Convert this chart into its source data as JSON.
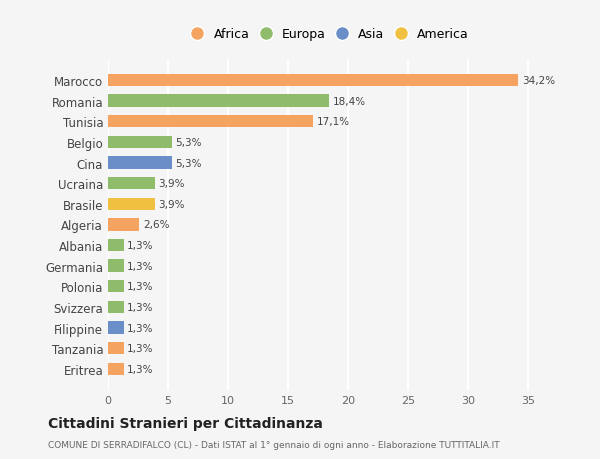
{
  "categories": [
    "Eritrea",
    "Tanzania",
    "Filippine",
    "Svizzera",
    "Polonia",
    "Germania",
    "Albania",
    "Algeria",
    "Brasile",
    "Ucraina",
    "Cina",
    "Belgio",
    "Tunisia",
    "Romania",
    "Marocco"
  ],
  "values": [
    1.3,
    1.3,
    1.3,
    1.3,
    1.3,
    1.3,
    1.3,
    2.6,
    3.9,
    3.9,
    5.3,
    5.3,
    17.1,
    18.4,
    34.2
  ],
  "labels": [
    "1,3%",
    "1,3%",
    "1,3%",
    "1,3%",
    "1,3%",
    "1,3%",
    "1,3%",
    "2,6%",
    "3,9%",
    "3,9%",
    "5,3%",
    "5,3%",
    "17,1%",
    "18,4%",
    "34,2%"
  ],
  "colors": [
    "#f4a460",
    "#f4a460",
    "#6a8fc8",
    "#8fbc6a",
    "#8fbc6a",
    "#8fbc6a",
    "#8fbc6a",
    "#f4a460",
    "#f0c040",
    "#8fbc6a",
    "#6a8fc8",
    "#8fbc6a",
    "#f4a460",
    "#8fbc6a",
    "#f4a460"
  ],
  "legend_labels": [
    "Africa",
    "Europa",
    "Asia",
    "America"
  ],
  "legend_colors": [
    "#f4a460",
    "#8fbc6a",
    "#6a8fc8",
    "#f0c040"
  ],
  "title": "Cittadini Stranieri per Cittadinanza",
  "subtitle": "COMUNE DI SERRADIFALCO (CL) - Dati ISTAT al 1° gennaio di ogni anno - Elaborazione TUTTITALIA.IT",
  "xlim": [
    0,
    37
  ],
  "xticks": [
    0,
    5,
    10,
    15,
    20,
    25,
    30,
    35
  ],
  "bg_color": "#f5f5f5",
  "grid_color": "#ffffff",
  "bar_height": 0.6
}
